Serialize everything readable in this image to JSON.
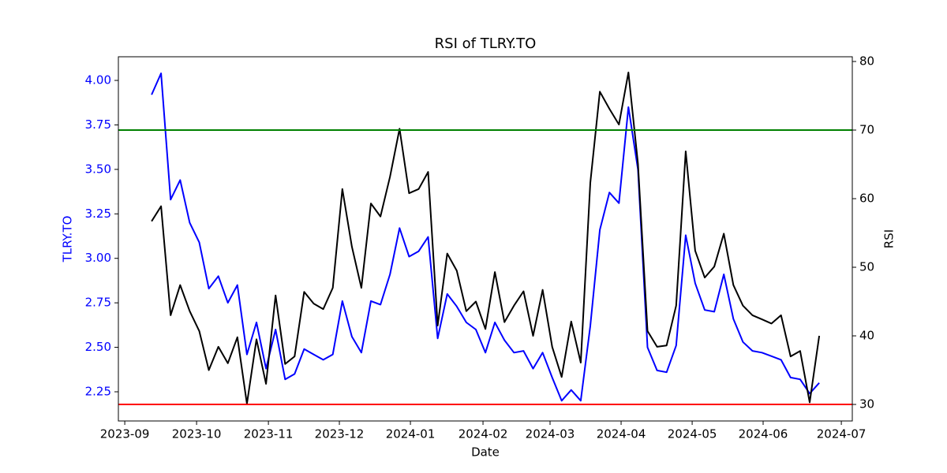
{
  "chart_data": {
    "type": "line",
    "title": "RSI of TLRY.TO",
    "xlabel": "Date",
    "ylabel": "TLRY.TO",
    "y2label": "RSI",
    "ylabel_color": "#0000ff",
    "xlim": [
      -3.48,
      73.47
    ],
    "xticks": [
      {
        "value": -2.81,
        "label": "2023-09"
      },
      {
        "value": 4.72,
        "label": "2023-10"
      },
      {
        "value": 12.25,
        "label": "2023-11"
      },
      {
        "value": 19.69,
        "label": "2023-12"
      },
      {
        "value": 27.14,
        "label": "2024-01"
      },
      {
        "value": 34.75,
        "label": "2024-02"
      },
      {
        "value": 41.78,
        "label": "2024-03"
      },
      {
        "value": 49.23,
        "label": "2024-04"
      },
      {
        "value": 56.68,
        "label": "2024-05"
      },
      {
        "value": 64.12,
        "label": "2024-06"
      },
      {
        "value": 72.32,
        "label": "2024-07"
      }
    ],
    "ylim": [
      2.086,
      4.133
    ],
    "yticks": [
      2.25,
      {
        "value": 2.5,
        "label": "2.50"
      },
      2.75,
      {
        "value": 3,
        "label": "3.00"
      },
      3.25,
      {
        "value": 3.5,
        "label": "3.50"
      },
      3.75,
      {
        "value": 4,
        "label": "4.00"
      }
    ],
    "y2lim": [
      27.59,
      80.69
    ],
    "y2ticks": [
      30,
      40,
      50,
      60,
      70,
      80
    ],
    "hlines": [
      {
        "value": 70,
        "color": "#008000",
        "axis": "y2"
      },
      {
        "value": 30,
        "color": "#ff0000",
        "axis": "y2"
      }
    ],
    "series": [
      {
        "color": "#0000ff",
        "values": [
          3.92,
          4.04,
          3.33,
          3.44,
          3.2,
          3.09,
          2.83,
          2.9,
          2.75,
          2.85,
          2.46,
          2.64,
          2.38,
          2.6,
          2.32,
          2.35,
          2.49,
          2.46,
          2.43,
          2.46,
          2.76,
          2.56,
          2.47,
          2.76,
          2.74,
          2.91,
          3.17,
          3.01,
          3.04,
          3.12,
          2.55,
          2.8,
          2.73,
          2.64,
          2.6,
          2.47,
          2.64,
          2.54,
          2.47,
          2.48,
          2.38,
          2.47,
          2.33,
          2.2,
          2.26,
          2.2,
          2.62,
          3.16,
          3.37,
          3.31,
          3.85,
          3.5,
          2.5,
          2.37,
          2.36,
          2.51,
          3.13,
          2.86,
          2.71,
          2.7,
          2.91,
          2.66,
          2.53,
          2.48,
          2.47,
          2.45,
          2.43,
          2.33,
          2.32,
          2.24,
          2.3
        ]
      },
      {
        "color": "#000000",
        "axis": "y2",
        "values": [
          56.7,
          58.9,
          43.0,
          47.4,
          43.6,
          40.7,
          35.0,
          38.4,
          36.0,
          39.8,
          30.1,
          39.5,
          33.0,
          45.9,
          35.9,
          37.0,
          46.4,
          44.7,
          43.9,
          47.0,
          61.4,
          53.0,
          47.0,
          59.3,
          57.4,
          63.2,
          70.2,
          60.8,
          61.4,
          63.9,
          41.5,
          52.0,
          49.5,
          43.6,
          45.0,
          41.0,
          49.3,
          42.0,
          44.4,
          46.5,
          40.0,
          46.7,
          38.4,
          34.0,
          42.1,
          36.1,
          62.3,
          75.6,
          73.1,
          70.8,
          78.4,
          65.1,
          40.7,
          38.4,
          38.6,
          44.4,
          66.9,
          52.4,
          48.5,
          50.1,
          54.9,
          47.4,
          44.4,
          43.0,
          42.4,
          41.8,
          43.0,
          37.0,
          37.8,
          30.3,
          40.0
        ]
      }
    ]
  }
}
